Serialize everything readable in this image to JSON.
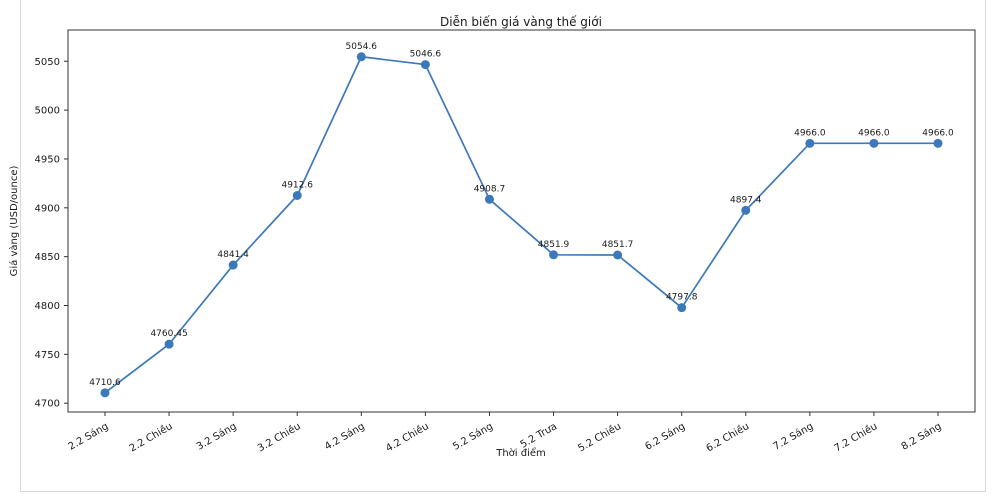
{
  "chart_data": {
    "type": "line",
    "title": "Diễn biến giá vàng thế giới",
    "xlabel": "Thời điểm",
    "ylabel": "Giá vàng (USD/ounce)",
    "categories": [
      "2.2 Sáng",
      "2.2 Chiều",
      "3.2 Sáng",
      "3.2 Chiều",
      "4.2 Sáng",
      "4.2 Chiều",
      "5.2 Sáng",
      "5.2 Trưa",
      "5.2 Chiều",
      "6.2 Sáng",
      "6.2 Chiều",
      "7.2 Sáng",
      "7.2 Chiều",
      "8.2 Sáng"
    ],
    "values": [
      4710.6,
      4760.45,
      4841.4,
      4912.6,
      5054.6,
      5046.6,
      4908.7,
      4851.9,
      4851.7,
      4797.8,
      4897.4,
      4966.0,
      4966.0,
      4966.0
    ],
    "point_labels": [
      "4710.6",
      "4760.45",
      "4841.4",
      "4912.6",
      "5054.6",
      "5046.6",
      "4908.7",
      "4851.9",
      "4851.7",
      "4797.8",
      "4897.4",
      "4966.0",
      "4966.0",
      "4966.0"
    ],
    "y_ticks": [
      4700,
      4750,
      4800,
      4850,
      4900,
      4950,
      5000,
      5050
    ],
    "ylim": [
      4691,
      5082
    ],
    "x_tick_rotation_deg": 30,
    "grid": false,
    "legend": null,
    "line_color": "#3d79b8",
    "marker_color": "#3d79b8",
    "spine_color": "#333333",
    "text_color": "#1a1a1a"
  }
}
